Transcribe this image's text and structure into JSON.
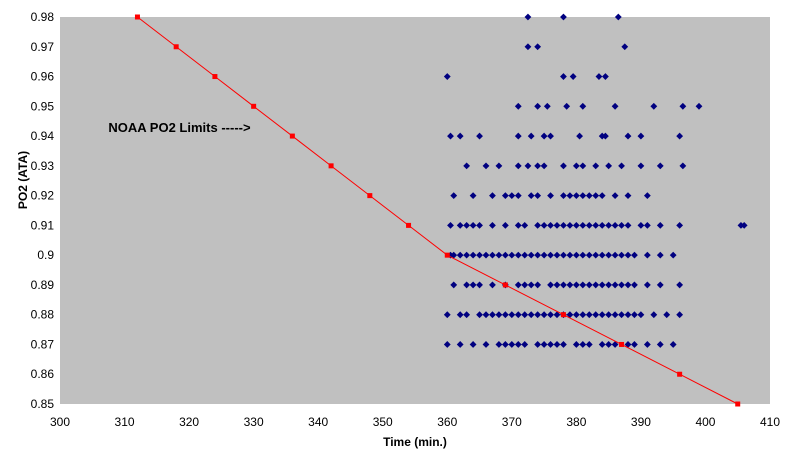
{
  "chart_data": {
    "type": "scatter",
    "xlabel": "Time (min.)",
    "ylabel": "PO2 (ATA)",
    "xlim": [
      300,
      410
    ],
    "ylim": [
      0.85,
      0.98
    ],
    "xticks": [
      "300",
      "310",
      "320",
      "330",
      "340",
      "350",
      "360",
      "370",
      "380",
      "390",
      "400",
      "410"
    ],
    "yticks": [
      "0.85",
      "0.86",
      "0.87",
      "0.88",
      "0.89",
      "0.9",
      "0.91",
      "0.92",
      "0.93",
      "0.94",
      "0.95",
      "0.96",
      "0.97",
      "0.98"
    ],
    "grid": false,
    "plot_background": "#c0c0c0",
    "annotations": [
      {
        "text": "NOAA PO2 Limits ----->",
        "x": 307.5,
        "y": 0.94
      }
    ],
    "series": [
      {
        "role": "limits",
        "type": "line",
        "color": "#ff0000",
        "marker": "square",
        "points": [
          [
            312,
            0.98
          ],
          [
            318,
            0.97
          ],
          [
            324,
            0.96
          ],
          [
            330,
            0.95
          ],
          [
            336,
            0.94
          ],
          [
            342,
            0.93
          ],
          [
            348,
            0.92
          ],
          [
            354,
            0.91
          ],
          [
            360,
            0.9
          ],
          [
            369,
            0.89
          ],
          [
            378,
            0.88
          ],
          [
            387,
            0.87
          ],
          [
            396,
            0.86
          ],
          [
            405,
            0.85
          ]
        ]
      },
      {
        "role": "observations",
        "type": "scatter",
        "color": "#000080",
        "marker": "diamond",
        "points": [
          [
            372.5,
            0.98
          ],
          [
            378,
            0.98
          ],
          [
            386.5,
            0.98
          ],
          [
            372.5,
            0.97
          ],
          [
            374,
            0.97
          ],
          [
            387.5,
            0.97
          ],
          [
            378,
            0.96
          ],
          [
            379.5,
            0.96
          ],
          [
            383.5,
            0.96
          ],
          [
            384.5,
            0.96
          ],
          [
            360,
            0.96
          ],
          [
            371,
            0.95
          ],
          [
            374,
            0.95
          ],
          [
            375.5,
            0.95
          ],
          [
            378.5,
            0.95
          ],
          [
            381,
            0.95
          ],
          [
            386,
            0.95
          ],
          [
            392,
            0.95
          ],
          [
            396.5,
            0.95
          ],
          [
            399,
            0.95
          ],
          [
            360.5,
            0.94
          ],
          [
            362,
            0.94
          ],
          [
            365,
            0.94
          ],
          [
            371,
            0.94
          ],
          [
            373,
            0.94
          ],
          [
            375,
            0.94
          ],
          [
            376,
            0.94
          ],
          [
            380.5,
            0.94
          ],
          [
            384,
            0.94
          ],
          [
            384.5,
            0.94
          ],
          [
            388,
            0.94
          ],
          [
            390,
            0.94
          ],
          [
            396,
            0.94
          ],
          [
            363,
            0.93
          ],
          [
            366,
            0.93
          ],
          [
            368,
            0.93
          ],
          [
            371,
            0.93
          ],
          [
            372.5,
            0.93
          ],
          [
            374,
            0.93
          ],
          [
            375,
            0.93
          ],
          [
            378,
            0.93
          ],
          [
            380,
            0.93
          ],
          [
            381,
            0.93
          ],
          [
            383,
            0.93
          ],
          [
            385,
            0.93
          ],
          [
            387,
            0.93
          ],
          [
            390,
            0.93
          ],
          [
            393,
            0.93
          ],
          [
            396.5,
            0.93
          ],
          [
            361,
            0.92
          ],
          [
            364,
            0.92
          ],
          [
            367,
            0.92
          ],
          [
            369,
            0.92
          ],
          [
            370,
            0.92
          ],
          [
            371,
            0.92
          ],
          [
            373,
            0.92
          ],
          [
            374,
            0.92
          ],
          [
            376,
            0.92
          ],
          [
            378,
            0.92
          ],
          [
            379,
            0.92
          ],
          [
            380,
            0.92
          ],
          [
            381,
            0.92
          ],
          [
            382,
            0.92
          ],
          [
            383,
            0.92
          ],
          [
            384,
            0.92
          ],
          [
            386,
            0.92
          ],
          [
            388,
            0.92
          ],
          [
            391,
            0.92
          ],
          [
            360.5,
            0.91
          ],
          [
            362,
            0.91
          ],
          [
            363,
            0.91
          ],
          [
            364,
            0.91
          ],
          [
            365,
            0.91
          ],
          [
            367,
            0.91
          ],
          [
            369,
            0.91
          ],
          [
            371,
            0.91
          ],
          [
            372,
            0.91
          ],
          [
            374,
            0.91
          ],
          [
            375,
            0.91
          ],
          [
            376,
            0.91
          ],
          [
            377,
            0.91
          ],
          [
            378,
            0.91
          ],
          [
            379,
            0.91
          ],
          [
            380,
            0.91
          ],
          [
            381,
            0.91
          ],
          [
            382,
            0.91
          ],
          [
            383,
            0.91
          ],
          [
            384,
            0.91
          ],
          [
            385,
            0.91
          ],
          [
            386,
            0.91
          ],
          [
            387,
            0.91
          ],
          [
            388,
            0.91
          ],
          [
            390,
            0.91
          ],
          [
            391,
            0.91
          ],
          [
            393,
            0.91
          ],
          [
            396,
            0.91
          ],
          [
            405.5,
            0.91
          ],
          [
            406,
            0.91
          ],
          [
            360.5,
            0.9
          ],
          [
            361,
            0.9
          ],
          [
            362,
            0.9
          ],
          [
            363,
            0.9
          ],
          [
            364,
            0.9
          ],
          [
            365,
            0.9
          ],
          [
            366,
            0.9
          ],
          [
            367,
            0.9
          ],
          [
            368,
            0.9
          ],
          [
            369,
            0.9
          ],
          [
            370,
            0.9
          ],
          [
            371,
            0.9
          ],
          [
            372,
            0.9
          ],
          [
            373,
            0.9
          ],
          [
            374,
            0.9
          ],
          [
            375,
            0.9
          ],
          [
            376,
            0.9
          ],
          [
            377,
            0.9
          ],
          [
            378,
            0.9
          ],
          [
            379,
            0.9
          ],
          [
            380,
            0.9
          ],
          [
            381,
            0.9
          ],
          [
            382,
            0.9
          ],
          [
            383,
            0.9
          ],
          [
            384,
            0.9
          ],
          [
            385,
            0.9
          ],
          [
            386,
            0.9
          ],
          [
            387,
            0.9
          ],
          [
            388,
            0.9
          ],
          [
            389,
            0.9
          ],
          [
            391,
            0.9
          ],
          [
            393,
            0.9
          ],
          [
            395,
            0.9
          ],
          [
            361,
            0.89
          ],
          [
            363,
            0.89
          ],
          [
            364,
            0.89
          ],
          [
            365,
            0.89
          ],
          [
            367,
            0.89
          ],
          [
            369,
            0.89
          ],
          [
            371,
            0.89
          ],
          [
            372,
            0.89
          ],
          [
            373,
            0.89
          ],
          [
            374,
            0.89
          ],
          [
            376,
            0.89
          ],
          [
            377,
            0.89
          ],
          [
            378,
            0.89
          ],
          [
            379,
            0.89
          ],
          [
            380,
            0.89
          ],
          [
            381,
            0.89
          ],
          [
            382,
            0.89
          ],
          [
            383,
            0.89
          ],
          [
            384,
            0.89
          ],
          [
            385,
            0.89
          ],
          [
            386,
            0.89
          ],
          [
            387,
            0.89
          ],
          [
            388,
            0.89
          ],
          [
            389,
            0.89
          ],
          [
            391,
            0.89
          ],
          [
            393,
            0.89
          ],
          [
            396,
            0.89
          ],
          [
            360,
            0.88
          ],
          [
            362,
            0.88
          ],
          [
            363,
            0.88
          ],
          [
            365,
            0.88
          ],
          [
            366,
            0.88
          ],
          [
            367,
            0.88
          ],
          [
            368,
            0.88
          ],
          [
            369,
            0.88
          ],
          [
            370,
            0.88
          ],
          [
            371,
            0.88
          ],
          [
            372,
            0.88
          ],
          [
            373,
            0.88
          ],
          [
            374,
            0.88
          ],
          [
            375,
            0.88
          ],
          [
            376,
            0.88
          ],
          [
            377,
            0.88
          ],
          [
            378,
            0.88
          ],
          [
            379,
            0.88
          ],
          [
            380,
            0.88
          ],
          [
            381,
            0.88
          ],
          [
            382,
            0.88
          ],
          [
            383,
            0.88
          ],
          [
            384,
            0.88
          ],
          [
            385,
            0.88
          ],
          [
            386,
            0.88
          ],
          [
            387,
            0.88
          ],
          [
            388,
            0.88
          ],
          [
            389,
            0.88
          ],
          [
            390,
            0.88
          ],
          [
            392,
            0.88
          ],
          [
            394,
            0.88
          ],
          [
            396,
            0.88
          ],
          [
            360,
            0.87
          ],
          [
            362,
            0.87
          ],
          [
            364,
            0.87
          ],
          [
            366,
            0.87
          ],
          [
            368,
            0.87
          ],
          [
            369,
            0.87
          ],
          [
            370,
            0.87
          ],
          [
            371,
            0.87
          ],
          [
            372,
            0.87
          ],
          [
            374,
            0.87
          ],
          [
            375,
            0.87
          ],
          [
            376,
            0.87
          ],
          [
            377,
            0.87
          ],
          [
            378,
            0.87
          ],
          [
            380,
            0.87
          ],
          [
            381,
            0.87
          ],
          [
            382,
            0.87
          ],
          [
            384,
            0.87
          ],
          [
            385,
            0.87
          ],
          [
            386,
            0.87
          ],
          [
            388,
            0.87
          ],
          [
            389,
            0.87
          ],
          [
            391,
            0.87
          ],
          [
            393,
            0.87
          ],
          [
            395,
            0.87
          ]
        ]
      }
    ]
  }
}
